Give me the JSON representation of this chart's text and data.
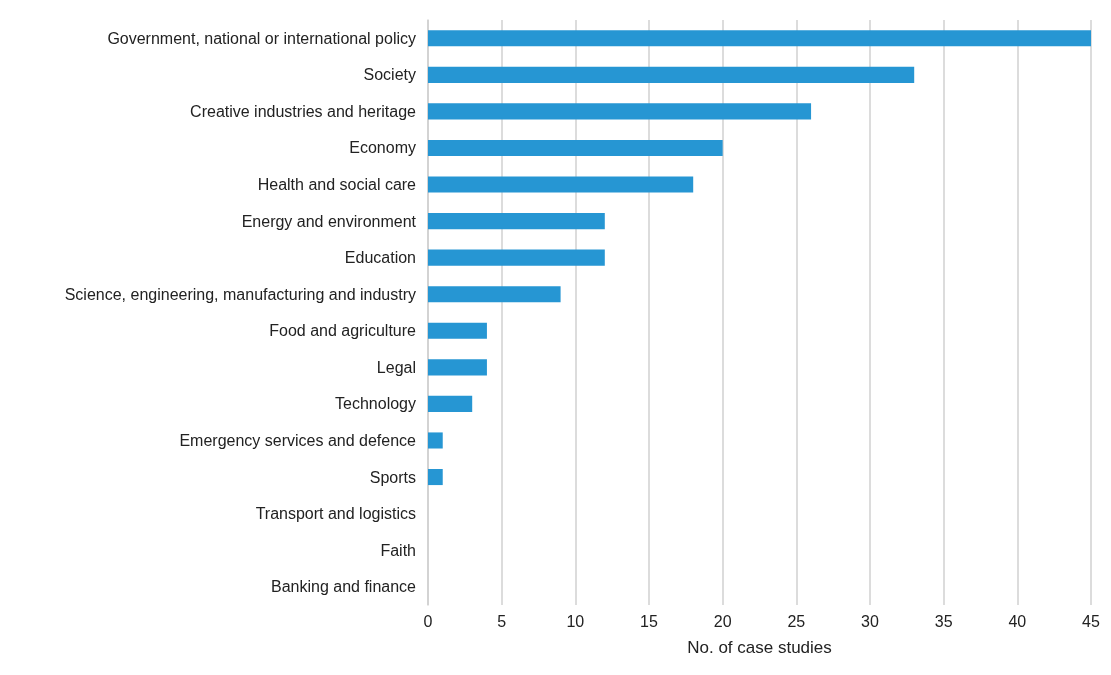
{
  "chart_data": {
    "type": "bar",
    "orientation": "horizontal",
    "xlabel": "No. of case studies",
    "categories": [
      "Government, national or international policy",
      "Society",
      "Creative industries and heritage",
      "Economy",
      "Health and social care",
      "Energy and environment",
      "Education",
      "Science, engineering, manufacturing and industry",
      "Food and agriculture",
      "Legal",
      "Technology",
      "Emergency services and defence",
      "Sports",
      "Transport and logistics",
      "Faith",
      "Banking and finance"
    ],
    "values": [
      45,
      33,
      26,
      20,
      18,
      12,
      12,
      9,
      4,
      4,
      3,
      1,
      1,
      0,
      0,
      0
    ],
    "color": "#2696d3",
    "xlim": [
      0,
      45
    ],
    "xticks": [
      0,
      5,
      10,
      15,
      20,
      25,
      30,
      35,
      40,
      45
    ],
    "grid": "x"
  }
}
